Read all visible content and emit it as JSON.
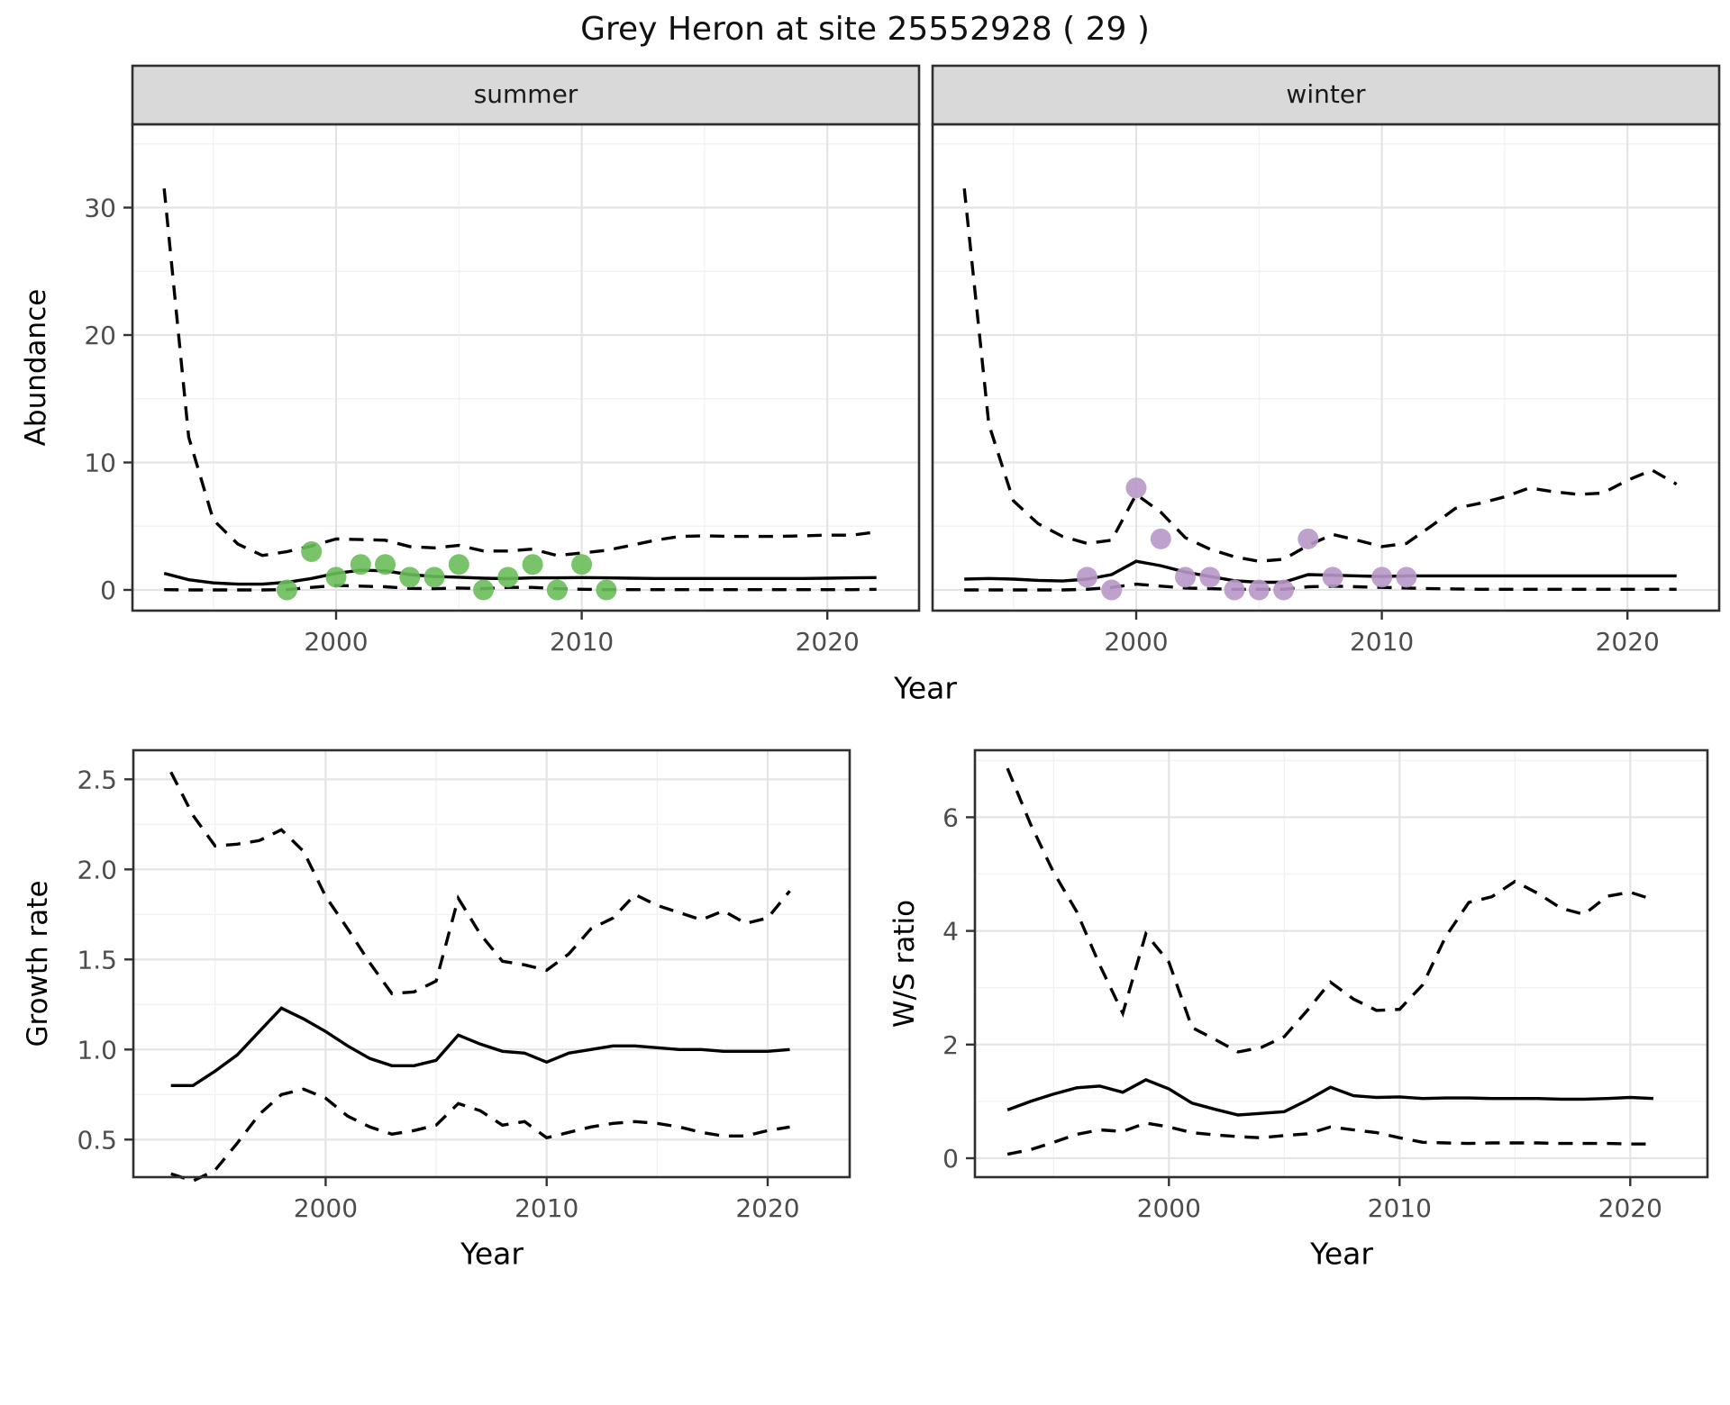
{
  "title": "Grey Heron at site 25552928 ( 29 )",
  "top_row": {
    "ylabel": "Abundance",
    "xlabel": "Year",
    "facets": [
      {
        "label": "summer"
      },
      {
        "label": "winter"
      }
    ]
  },
  "bottom_row": {
    "left": {
      "ylabel": "Growth rate",
      "xlabel": "Year"
    },
    "right": {
      "ylabel": "W/S ratio",
      "xlabel": "Year"
    }
  },
  "colors": {
    "line": "#000000",
    "summer_points": "#6abe5b",
    "winter_points": "#b897c9",
    "strip_fill": "#d9d9d9",
    "panel_border": "#2f2f2f",
    "grid_major": "#e4e4e4",
    "grid_minor": "#f2f2f2",
    "tick_text": "#4d4d4d"
  },
  "chart_data": [
    {
      "id": "abundance_summer",
      "type": "line",
      "facet": "summer",
      "ylabel": "Abundance",
      "xlabel": "Year",
      "xlim": [
        1991.7,
        2023.7
      ],
      "ylim": [
        -1.6,
        34.8
      ],
      "grid": true,
      "x_ticks": [
        [
          2000,
          "2000"
        ],
        [
          2010,
          "2010"
        ],
        [
          2020,
          "2020"
        ]
      ],
      "y_ticks": [
        [
          0,
          "0"
        ],
        [
          10,
          "10"
        ],
        [
          20,
          "20"
        ],
        [
          30,
          "30"
        ]
      ],
      "years": [
        1993,
        1994,
        1995,
        1996,
        1997,
        1998,
        1999,
        2000,
        2001,
        2002,
        2003,
        2004,
        2005,
        2006,
        2007,
        2008,
        2009,
        2010,
        2011,
        2012,
        2013,
        2014,
        2015,
        2016,
        2017,
        2018,
        2019,
        2020,
        2021,
        2022
      ],
      "series": [
        {
          "name": "median",
          "style": "solid",
          "values": [
            1.3,
            0.8,
            0.55,
            0.45,
            0.45,
            0.6,
            0.9,
            1.3,
            1.55,
            1.5,
            1.2,
            1.05,
            1.0,
            0.92,
            0.88,
            0.95,
            0.95,
            0.97,
            0.95,
            0.92,
            0.9,
            0.9,
            0.9,
            0.9,
            0.9,
            0.9,
            0.9,
            0.92,
            0.95,
            0.97
          ]
        },
        {
          "name": "lower_ci",
          "style": "dashed",
          "values": [
            0.02,
            0,
            0,
            0,
            0,
            0.02,
            0.2,
            0.35,
            0.3,
            0.25,
            0.12,
            0.1,
            0.15,
            0.1,
            0.2,
            0.2,
            0.1,
            0.05,
            0.02,
            0.02,
            0.02,
            0.02,
            0.02,
            0.02,
            0.02,
            0.02,
            0.02,
            0.02,
            0.02,
            0.05
          ]
        },
        {
          "name": "upper_ci",
          "style": "dashed",
          "values": [
            31.5,
            12,
            5.5,
            3.6,
            2.7,
            3.0,
            3.45,
            4.0,
            3.95,
            3.9,
            3.4,
            3.3,
            3.5,
            3.05,
            3.05,
            3.2,
            2.7,
            2.9,
            3.1,
            3.5,
            3.9,
            4.2,
            4.25,
            4.2,
            4.2,
            4.2,
            4.25,
            4.3,
            4.3,
            4.55
          ]
        }
      ],
      "points": {
        "name": "observations",
        "color": "#6abe5b",
        "data": [
          [
            1998,
            0
          ],
          [
            1999,
            3
          ],
          [
            2000,
            1
          ],
          [
            2001,
            2
          ],
          [
            2002,
            2
          ],
          [
            2003,
            1
          ],
          [
            2004,
            1
          ],
          [
            2005,
            2
          ],
          [
            2006,
            0
          ],
          [
            2007,
            1
          ],
          [
            2008,
            2
          ],
          [
            2009,
            0
          ],
          [
            2010,
            2
          ],
          [
            2011,
            0
          ]
        ]
      }
    },
    {
      "id": "abundance_winter",
      "type": "line",
      "facet": "winter",
      "ylabel": "Abundance",
      "xlabel": "Year",
      "xlim": [
        1991.7,
        2023.7
      ],
      "ylim": [
        -1.6,
        34.8
      ],
      "grid": true,
      "x_ticks": [
        [
          2000,
          "2000"
        ],
        [
          2010,
          "2010"
        ],
        [
          2020,
          "2020"
        ]
      ],
      "y_ticks": [
        [
          0,
          "0"
        ],
        [
          10,
          "10"
        ],
        [
          20,
          "20"
        ],
        [
          30,
          "30"
        ]
      ],
      "years": [
        1993,
        1994,
        1995,
        1996,
        1997,
        1998,
        1999,
        2000,
        2001,
        2002,
        2003,
        2004,
        2005,
        2006,
        2007,
        2008,
        2009,
        2010,
        2011,
        2012,
        2013,
        2014,
        2015,
        2016,
        2017,
        2018,
        2019,
        2020,
        2021,
        2022
      ],
      "series": [
        {
          "name": "median",
          "style": "solid",
          "values": [
            0.85,
            0.9,
            0.85,
            0.75,
            0.7,
            0.85,
            1.2,
            2.25,
            1.9,
            1.4,
            1.05,
            0.72,
            0.6,
            0.6,
            1.2,
            1.15,
            1.1,
            1.05,
            1.1,
            1.1,
            1.1,
            1.1,
            1.1,
            1.1,
            1.1,
            1.1,
            1.1,
            1.1,
            1.1,
            1.1
          ]
        },
        {
          "name": "lower_ci",
          "style": "dashed",
          "values": [
            0,
            0,
            0,
            0,
            0,
            0.05,
            0.2,
            0.45,
            0.3,
            0.15,
            0.1,
            0.05,
            0.05,
            0.05,
            0.25,
            0.3,
            0.25,
            0.2,
            0.15,
            0.1,
            0.08,
            0.05,
            0.05,
            0.05,
            0.05,
            0.05,
            0.05,
            0.05,
            0.05,
            0.05
          ]
        },
        {
          "name": "upper_ci",
          "style": "dashed",
          "values": [
            31.5,
            13,
            7.0,
            5.2,
            4.2,
            3.65,
            3.9,
            7.5,
            6.1,
            4.1,
            3.2,
            2.6,
            2.25,
            2.4,
            3.5,
            4.35,
            3.9,
            3.4,
            3.65,
            5.0,
            6.4,
            6.8,
            7.3,
            8.0,
            7.7,
            7.5,
            7.6,
            8.6,
            9.4,
            8.3
          ]
        }
      ],
      "points": {
        "name": "observations",
        "color": "#b897c9",
        "data": [
          [
            1998,
            1
          ],
          [
            1999,
            0
          ],
          [
            2000,
            8
          ],
          [
            2001,
            4
          ],
          [
            2002,
            1
          ],
          [
            2003,
            1
          ],
          [
            2004,
            0
          ],
          [
            2005,
            0
          ],
          [
            2006,
            0
          ],
          [
            2007,
            4
          ],
          [
            2008,
            1
          ],
          [
            2010,
            1
          ],
          [
            2011,
            1
          ]
        ]
      }
    },
    {
      "id": "growth_rate",
      "type": "line",
      "ylabel": "Growth rate",
      "xlabel": "Year",
      "xlim": [
        1991.3,
        2023.7
      ],
      "ylim": [
        0.29,
        2.66
      ],
      "grid": true,
      "x_ticks": [
        [
          2000,
          "2000"
        ],
        [
          2010,
          "2010"
        ],
        [
          2020,
          "2020"
        ]
      ],
      "y_ticks": [
        [
          0.5,
          "0.5"
        ],
        [
          1.0,
          "1.0"
        ],
        [
          1.5,
          "1.5"
        ],
        [
          2.0,
          "2.0"
        ],
        [
          2.5,
          "2.5"
        ]
      ],
      "years": [
        1993,
        1994,
        1995,
        1996,
        1997,
        1998,
        1999,
        2000,
        2001,
        2002,
        2003,
        2004,
        2005,
        2006,
        2007,
        2008,
        2009,
        2010,
        2011,
        2012,
        2013,
        2014,
        2015,
        2016,
        2017,
        2018,
        2019,
        2020,
        2021
      ],
      "series": [
        {
          "name": "median",
          "style": "solid",
          "values": [
            0.8,
            0.8,
            0.88,
            0.97,
            1.1,
            1.23,
            1.17,
            1.1,
            1.02,
            0.95,
            0.91,
            0.91,
            0.94,
            1.08,
            1.03,
            0.99,
            0.98,
            0.93,
            0.98,
            1.0,
            1.02,
            1.02,
            1.01,
            1.0,
            1.0,
            0.99,
            0.99,
            0.99,
            1.0
          ]
        },
        {
          "name": "lower_ci",
          "style": "dashed",
          "values": [
            0.31,
            0.27,
            0.33,
            0.48,
            0.64,
            0.75,
            0.78,
            0.73,
            0.63,
            0.57,
            0.53,
            0.55,
            0.58,
            0.7,
            0.66,
            0.58,
            0.6,
            0.51,
            0.54,
            0.57,
            0.59,
            0.6,
            0.59,
            0.57,
            0.54,
            0.52,
            0.52,
            0.55,
            0.57
          ]
        },
        {
          "name": "upper_ci",
          "style": "dashed",
          "values": [
            2.54,
            2.3,
            2.13,
            2.14,
            2.16,
            2.22,
            2.1,
            1.85,
            1.67,
            1.48,
            1.31,
            1.32,
            1.38,
            1.84,
            1.64,
            1.49,
            1.47,
            1.44,
            1.53,
            1.67,
            1.73,
            1.86,
            1.8,
            1.76,
            1.72,
            1.77,
            1.7,
            1.73,
            1.88
          ]
        }
      ]
    },
    {
      "id": "ws_ratio",
      "type": "line",
      "ylabel": "W/S ratio",
      "xlabel": "Year",
      "xlim": [
        1991.6,
        2023.4
      ],
      "ylim": [
        -0.33,
        7.18
      ],
      "grid": true,
      "x_ticks": [
        [
          2000,
          "2000"
        ],
        [
          2010,
          "2010"
        ],
        [
          2020,
          "2020"
        ]
      ],
      "y_ticks": [
        [
          0,
          "0"
        ],
        [
          2,
          "2"
        ],
        [
          4,
          "4"
        ],
        [
          6,
          "6"
        ]
      ],
      "years": [
        1993,
        1994,
        1995,
        1996,
        1997,
        1998,
        1999,
        2000,
        2001,
        2002,
        2003,
        2004,
        2005,
        2006,
        2007,
        2008,
        2009,
        2010,
        2011,
        2012,
        2013,
        2014,
        2015,
        2016,
        2017,
        2018,
        2019,
        2020,
        2021
      ],
      "series": [
        {
          "name": "median",
          "style": "solid",
          "values": [
            0.85,
            1.0,
            1.13,
            1.24,
            1.27,
            1.16,
            1.38,
            1.22,
            0.97,
            0.86,
            0.76,
            0.79,
            0.82,
            1.02,
            1.25,
            1.1,
            1.07,
            1.08,
            1.05,
            1.06,
            1.06,
            1.05,
            1.05,
            1.05,
            1.04,
            1.04,
            1.05,
            1.07,
            1.05
          ]
        },
        {
          "name": "lower_ci",
          "style": "dashed",
          "values": [
            0.07,
            0.15,
            0.28,
            0.42,
            0.5,
            0.47,
            0.62,
            0.55,
            0.45,
            0.41,
            0.38,
            0.36,
            0.4,
            0.43,
            0.55,
            0.5,
            0.45,
            0.36,
            0.28,
            0.27,
            0.26,
            0.27,
            0.27,
            0.27,
            0.26,
            0.26,
            0.26,
            0.25,
            0.25
          ]
        },
        {
          "name": "upper_ci",
          "style": "dashed",
          "values": [
            6.86,
            5.88,
            5.03,
            4.34,
            3.4,
            2.55,
            3.95,
            3.45,
            2.3,
            2.09,
            1.87,
            1.95,
            2.14,
            2.6,
            3.1,
            2.8,
            2.6,
            2.62,
            3.05,
            3.9,
            4.5,
            4.6,
            4.87,
            4.66,
            4.4,
            4.29,
            4.61,
            4.68,
            4.55
          ]
        }
      ]
    }
  ]
}
